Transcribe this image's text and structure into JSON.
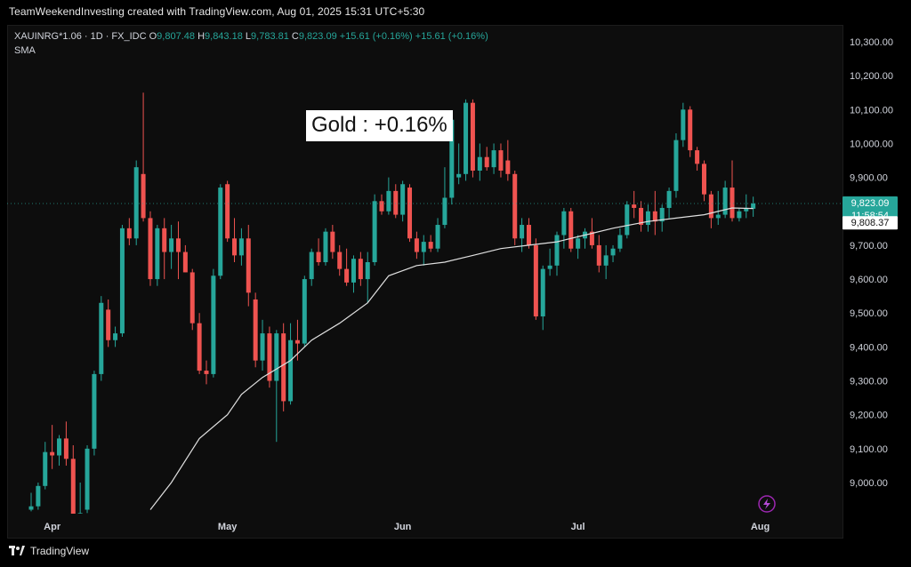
{
  "header": {
    "attribution": "TeamWeekendInvesting created with TradingView.com, Aug 01, 2025 15:31 UTC+5:30"
  },
  "legend": {
    "symbol": "XAUINRG*1.06 · 1D · FX_IDC",
    "o_label": "O",
    "o_value": "9,807.48",
    "h_label": "H",
    "h_value": "9,843.18",
    "l_label": "L",
    "l_value": "9,783.81",
    "c_label": "C",
    "c_value": "9,823.09",
    "change1": "+15.61 (+0.16%)",
    "change2": "+15.61 (+0.16%)",
    "indicator": "SMA"
  },
  "annotation": {
    "text": "Gold : +0.16%"
  },
  "price_tags": {
    "last_price": "9,823.09",
    "countdown": "11:58:54",
    "sma_value": "9,808.37"
  },
  "footer": {
    "brand": "TradingView"
  },
  "colors": {
    "up": "#26a69a",
    "down": "#ef5350",
    "sma": "#e0e0e0",
    "background": "#0d0d0d"
  },
  "chart_data": {
    "type": "candlestick",
    "title": "",
    "ylim": [
      8920,
      10330
    ],
    "yticks": [
      9000,
      9100,
      9200,
      9300,
      9400,
      9500,
      9600,
      9700,
      9800,
      9900,
      10000,
      10100,
      10200,
      10300
    ],
    "ytick_labels": [
      "9,000.00",
      "9,100.00",
      "9,200.00",
      "9,300.00",
      "9,400.00",
      "9,500.00",
      "9,600.00",
      "9,700.00",
      "9,800.00",
      "9,900.00",
      "10,000.00",
      "10,100.00",
      "10,200.00",
      "10,300.00"
    ],
    "xticks": [
      {
        "label": "Apr",
        "index": 3
      },
      {
        "label": "May",
        "index": 28
      },
      {
        "label": "Jun",
        "index": 53
      },
      {
        "label": "Jul",
        "index": 78
      },
      {
        "label": "Aug",
        "index": 104
      }
    ],
    "grid": false,
    "candles": [
      {
        "o": 8920,
        "h": 8970,
        "l": 8915,
        "c": 8930
      },
      {
        "o": 8930,
        "h": 9000,
        "l": 8920,
        "c": 8990
      },
      {
        "o": 8990,
        "h": 9120,
        "l": 8980,
        "c": 9090
      },
      {
        "o": 9090,
        "h": 9170,
        "l": 9040,
        "c": 9080
      },
      {
        "o": 9080,
        "h": 9140,
        "l": 9050,
        "c": 9130
      },
      {
        "o": 9130,
        "h": 9180,
        "l": 9050,
        "c": 9070
      },
      {
        "o": 9070,
        "h": 9110,
        "l": 8890,
        "c": 8900
      },
      {
        "o": 8900,
        "h": 9000,
        "l": 8880,
        "c": 8910
      },
      {
        "o": 8920,
        "h": 9110,
        "l": 8910,
        "c": 9100
      },
      {
        "o": 9100,
        "h": 9330,
        "l": 9080,
        "c": 9320
      },
      {
        "o": 9320,
        "h": 9550,
        "l": 9300,
        "c": 9530
      },
      {
        "o": 9510,
        "h": 9540,
        "l": 9400,
        "c": 9420
      },
      {
        "o": 9420,
        "h": 9460,
        "l": 9400,
        "c": 9440
      },
      {
        "o": 9440,
        "h": 9760,
        "l": 9430,
        "c": 9750
      },
      {
        "o": 9750,
        "h": 9780,
        "l": 9700,
        "c": 9720
      },
      {
        "o": 9720,
        "h": 9950,
        "l": 9700,
        "c": 9930
      },
      {
        "o": 9910,
        "h": 10150,
        "l": 9770,
        "c": 9780
      },
      {
        "o": 9780,
        "h": 9800,
        "l": 9580,
        "c": 9600
      },
      {
        "o": 9600,
        "h": 9760,
        "l": 9580,
        "c": 9750
      },
      {
        "o": 9750,
        "h": 9780,
        "l": 9600,
        "c": 9680
      },
      {
        "o": 9680,
        "h": 9760,
        "l": 9630,
        "c": 9720
      },
      {
        "o": 9720,
        "h": 9770,
        "l": 9600,
        "c": 9680
      },
      {
        "o": 9680,
        "h": 9700,
        "l": 9620,
        "c": 9620
      },
      {
        "o": 9620,
        "h": 9630,
        "l": 9450,
        "c": 9470
      },
      {
        "o": 9470,
        "h": 9500,
        "l": 9320,
        "c": 9330
      },
      {
        "o": 9330,
        "h": 9360,
        "l": 9290,
        "c": 9320
      },
      {
        "o": 9320,
        "h": 9630,
        "l": 9310,
        "c": 9610
      },
      {
        "o": 9610,
        "h": 9880,
        "l": 9600,
        "c": 9870
      },
      {
        "o": 9880,
        "h": 9890,
        "l": 9710,
        "c": 9720
      },
      {
        "o": 9720,
        "h": 9780,
        "l": 9650,
        "c": 9670
      },
      {
        "o": 9670,
        "h": 9750,
        "l": 9640,
        "c": 9720
      },
      {
        "o": 9720,
        "h": 9760,
        "l": 9520,
        "c": 9560
      },
      {
        "o": 9540,
        "h": 9560,
        "l": 9340,
        "c": 9360
      },
      {
        "o": 9360,
        "h": 9480,
        "l": 9330,
        "c": 9440
      },
      {
        "o": 9440,
        "h": 9460,
        "l": 9280,
        "c": 9300
      },
      {
        "o": 9300,
        "h": 9450,
        "l": 9120,
        "c": 9440
      },
      {
        "o": 9440,
        "h": 9470,
        "l": 9210,
        "c": 9240
      },
      {
        "o": 9240,
        "h": 9470,
        "l": 9230,
        "c": 9420
      },
      {
        "o": 9420,
        "h": 9480,
        "l": 9360,
        "c": 9410
      },
      {
        "o": 9410,
        "h": 9610,
        "l": 9400,
        "c": 9600
      },
      {
        "o": 9600,
        "h": 9690,
        "l": 9580,
        "c": 9680
      },
      {
        "o": 9680,
        "h": 9720,
        "l": 9640,
        "c": 9650
      },
      {
        "o": 9650,
        "h": 9750,
        "l": 9640,
        "c": 9740
      },
      {
        "o": 9740,
        "h": 9760,
        "l": 9660,
        "c": 9680
      },
      {
        "o": 9680,
        "h": 9700,
        "l": 9610,
        "c": 9630
      },
      {
        "o": 9630,
        "h": 9690,
        "l": 9580,
        "c": 9590
      },
      {
        "o": 9590,
        "h": 9670,
        "l": 9560,
        "c": 9660
      },
      {
        "o": 9660,
        "h": 9680,
        "l": 9580,
        "c": 9600
      },
      {
        "o": 9600,
        "h": 9680,
        "l": 9530,
        "c": 9650
      },
      {
        "o": 9650,
        "h": 9850,
        "l": 9640,
        "c": 9830
      },
      {
        "o": 9830,
        "h": 9850,
        "l": 9790,
        "c": 9800
      },
      {
        "o": 9800,
        "h": 9900,
        "l": 9790,
        "c": 9860
      },
      {
        "o": 9860,
        "h": 9880,
        "l": 9780,
        "c": 9790
      },
      {
        "o": 9790,
        "h": 9890,
        "l": 9770,
        "c": 9880
      },
      {
        "o": 9870,
        "h": 9880,
        "l": 9710,
        "c": 9720
      },
      {
        "o": 9720,
        "h": 9740,
        "l": 9660,
        "c": 9680
      },
      {
        "o": 9680,
        "h": 9730,
        "l": 9640,
        "c": 9710
      },
      {
        "o": 9710,
        "h": 9730,
        "l": 9680,
        "c": 9690
      },
      {
        "o": 9690,
        "h": 9780,
        "l": 9680,
        "c": 9760
      },
      {
        "o": 9760,
        "h": 9930,
        "l": 9750,
        "c": 9840
      },
      {
        "o": 9840,
        "h": 10080,
        "l": 9820,
        "c": 10070
      },
      {
        "o": 9900,
        "h": 10000,
        "l": 9880,
        "c": 9910
      },
      {
        "o": 9910,
        "h": 10130,
        "l": 9890,
        "c": 10120
      },
      {
        "o": 10120,
        "h": 10130,
        "l": 9900,
        "c": 9920
      },
      {
        "o": 9920,
        "h": 10000,
        "l": 9890,
        "c": 9960
      },
      {
        "o": 9960,
        "h": 9990,
        "l": 9920,
        "c": 9930
      },
      {
        "o": 9930,
        "h": 10000,
        "l": 9910,
        "c": 9980
      },
      {
        "o": 9980,
        "h": 10000,
        "l": 9900,
        "c": 9920
      },
      {
        "o": 9950,
        "h": 10010,
        "l": 9890,
        "c": 9910
      },
      {
        "o": 9910,
        "h": 9920,
        "l": 9700,
        "c": 9720
      },
      {
        "o": 9720,
        "h": 9780,
        "l": 9680,
        "c": 9760
      },
      {
        "o": 9760,
        "h": 9780,
        "l": 9690,
        "c": 9700
      },
      {
        "o": 9700,
        "h": 9720,
        "l": 9480,
        "c": 9490
      },
      {
        "o": 9490,
        "h": 9640,
        "l": 9450,
        "c": 9630
      },
      {
        "o": 9630,
        "h": 9690,
        "l": 9610,
        "c": 9640
      },
      {
        "o": 9640,
        "h": 9740,
        "l": 9610,
        "c": 9730
      },
      {
        "o": 9730,
        "h": 9810,
        "l": 9690,
        "c": 9800
      },
      {
        "o": 9800,
        "h": 9810,
        "l": 9680,
        "c": 9690
      },
      {
        "o": 9690,
        "h": 9730,
        "l": 9660,
        "c": 9720
      },
      {
        "o": 9720,
        "h": 9750,
        "l": 9690,
        "c": 9740
      },
      {
        "o": 9740,
        "h": 9780,
        "l": 9690,
        "c": 9700
      },
      {
        "o": 9700,
        "h": 9730,
        "l": 9620,
        "c": 9640
      },
      {
        "o": 9640,
        "h": 9700,
        "l": 9600,
        "c": 9670
      },
      {
        "o": 9670,
        "h": 9700,
        "l": 9650,
        "c": 9690
      },
      {
        "o": 9690,
        "h": 9750,
        "l": 9680,
        "c": 9730
      },
      {
        "o": 9730,
        "h": 9830,
        "l": 9720,
        "c": 9820
      },
      {
        "o": 9820,
        "h": 9860,
        "l": 9780,
        "c": 9810
      },
      {
        "o": 9810,
        "h": 9830,
        "l": 9740,
        "c": 9760
      },
      {
        "o": 9760,
        "h": 9820,
        "l": 9740,
        "c": 9800
      },
      {
        "o": 9800,
        "h": 9860,
        "l": 9730,
        "c": 9770
      },
      {
        "o": 9770,
        "h": 9820,
        "l": 9740,
        "c": 9810
      },
      {
        "o": 9810,
        "h": 9870,
        "l": 9780,
        "c": 9860
      },
      {
        "o": 9860,
        "h": 10030,
        "l": 9840,
        "c": 10010
      },
      {
        "o": 10010,
        "h": 10120,
        "l": 9990,
        "c": 10100
      },
      {
        "o": 10100,
        "h": 10110,
        "l": 9960,
        "c": 9980
      },
      {
        "o": 9980,
        "h": 9990,
        "l": 9920,
        "c": 9940
      },
      {
        "o": 9940,
        "h": 9950,
        "l": 9830,
        "c": 9850
      },
      {
        "o": 9850,
        "h": 9860,
        "l": 9750,
        "c": 9780
      },
      {
        "o": 9780,
        "h": 9860,
        "l": 9760,
        "c": 9790
      },
      {
        "o": 9790,
        "h": 9890,
        "l": 9780,
        "c": 9870
      },
      {
        "o": 9870,
        "h": 9950,
        "l": 9770,
        "c": 9780
      },
      {
        "o": 9780,
        "h": 9810,
        "l": 9770,
        "c": 9800
      },
      {
        "o": 9800,
        "h": 9850,
        "l": 9780,
        "c": 9810
      },
      {
        "o": 9807.48,
        "h": 9843.18,
        "l": 9783.81,
        "c": 9823.09
      }
    ],
    "sma": {
      "name": "SMA",
      "points": [
        {
          "i": 17,
          "v": 8920
        },
        {
          "i": 20,
          "v": 9000
        },
        {
          "i": 24,
          "v": 9130
        },
        {
          "i": 28,
          "v": 9200
        },
        {
          "i": 30,
          "v": 9260
        },
        {
          "i": 33,
          "v": 9310
        },
        {
          "i": 37,
          "v": 9360
        },
        {
          "i": 40,
          "v": 9420
        },
        {
          "i": 44,
          "v": 9470
        },
        {
          "i": 48,
          "v": 9530
        },
        {
          "i": 51,
          "v": 9610
        },
        {
          "i": 55,
          "v": 9640
        },
        {
          "i": 59,
          "v": 9650
        },
        {
          "i": 63,
          "v": 9670
        },
        {
          "i": 67,
          "v": 9690
        },
        {
          "i": 71,
          "v": 9700
        },
        {
          "i": 75,
          "v": 9710
        },
        {
          "i": 79,
          "v": 9730
        },
        {
          "i": 83,
          "v": 9750
        },
        {
          "i": 88,
          "v": 9770
        },
        {
          "i": 92,
          "v": 9780
        },
        {
          "i": 96,
          "v": 9790
        },
        {
          "i": 100,
          "v": 9810
        },
        {
          "i": 103,
          "v": 9808.37
        }
      ]
    }
  }
}
